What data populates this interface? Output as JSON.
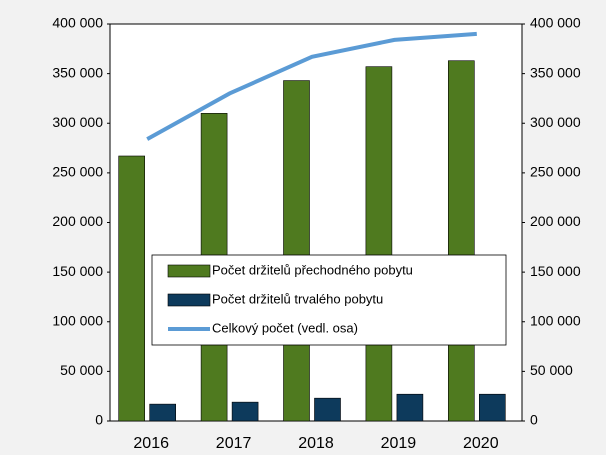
{
  "chart_data": {
    "type": "bar",
    "categories": [
      "2016",
      "2017",
      "2018",
      "2019",
      "2020"
    ],
    "series": [
      {
        "name": "Počet držitelů přechodného pobytu",
        "color": "#4f7a1f",
        "type": "bar",
        "axis": "y",
        "values": [
          267000,
          310000,
          343000,
          357000,
          363000
        ]
      },
      {
        "name": "Počet držitelů trvalého pobytu",
        "color": "#0d3a5c",
        "type": "bar",
        "axis": "y",
        "values": [
          17000,
          19000,
          23000,
          27000,
          27000
        ]
      },
      {
        "name": "Celkový počet (vedl. osa)",
        "color": "#5b9bd5",
        "type": "line",
        "axis": "y2",
        "values": [
          284000,
          330000,
          367000,
          384000,
          390000
        ]
      }
    ],
    "ylim": [
      0,
      400000
    ],
    "yticks": [
      0,
      {
        "value": 50000,
        "label": "50 000"
      },
      {
        "value": 100000,
        "label": "100 000"
      },
      {
        "value": 150000,
        "label": "150 000"
      },
      {
        "value": 200000,
        "label": "200 000"
      },
      {
        "value": 250000,
        "label": "250 000"
      },
      {
        "value": 300000,
        "label": "300 000"
      },
      {
        "value": 350000,
        "label": "350 000"
      },
      {
        "value": 400000,
        "label": "400 000"
      }
    ],
    "y2lim": [
      0,
      400000
    ],
    "y2ticks": [
      0,
      {
        "value": 50000,
        "label": "50 000"
      },
      {
        "value": 100000,
        "label": "100 000"
      },
      {
        "value": 150000,
        "label": "150 000"
      },
      {
        "value": 200000,
        "label": "200 000"
      },
      {
        "value": 250000,
        "label": "250 000"
      },
      {
        "value": 300000,
        "label": "300 000"
      },
      {
        "value": 350000,
        "label": "350 000"
      },
      {
        "value": 400000,
        "label": "400 000"
      }
    ],
    "grid": false
  }
}
